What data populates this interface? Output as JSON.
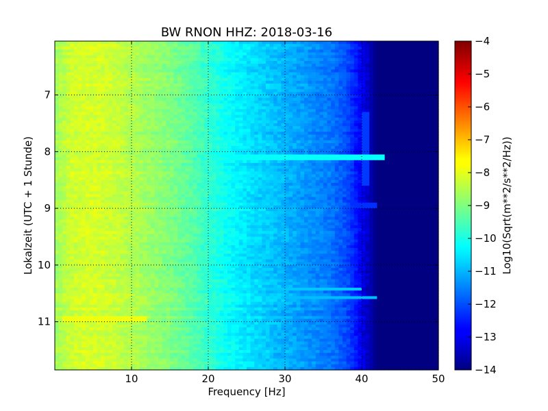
{
  "chart_data": {
    "type": "heatmap",
    "title": "BW RNON HHZ: 2018-03-16",
    "xlabel": "Frequency [Hz]",
    "ylabel": "Lokalzeit (UTC + 1 Stunde)",
    "xlim": [
      0,
      50
    ],
    "ylim": [
      6.05,
      11.85
    ],
    "y_inverted": true,
    "x_ticks": [
      10,
      20,
      30,
      40,
      50
    ],
    "x_tick_labels": [
      "10",
      "20",
      "30",
      "40",
      "50"
    ],
    "y_ticks": [
      7,
      8,
      9,
      10,
      11
    ],
    "y_tick_labels": [
      "7",
      "8",
      "9",
      "10",
      "11"
    ],
    "grid": true,
    "colormap": "jet",
    "colorbar": {
      "label": "Log10(Sqrt(m**2/s**2/Hz))",
      "range": [
        -14,
        -4
      ],
      "ticks": [
        -4,
        -5,
        -6,
        -7,
        -8,
        -9,
        -10,
        -11,
        -12,
        -13,
        -14
      ],
      "tick_labels": [
        "−4",
        "−5",
        "−6",
        "−7",
        "−8",
        "−9",
        "−10",
        "−11",
        "−12",
        "−13",
        "−14"
      ]
    },
    "spectrum_profile": {
      "frequency_hz": [
        0,
        2,
        4,
        6,
        8,
        10,
        12,
        15,
        18,
        20,
        22,
        25,
        28,
        30,
        33,
        36,
        38,
        39,
        40,
        41,
        42,
        45,
        50
      ],
      "log_amplitude": [
        -8.7,
        -8.25,
        -8.15,
        -8.2,
        -8.3,
        -8.5,
        -8.7,
        -9.0,
        -9.4,
        -9.8,
        -10.1,
        -10.5,
        -10.8,
        -11.0,
        -11.3,
        -11.6,
        -12.0,
        -12.4,
        -12.9,
        -13.4,
        -14.0,
        -14.0,
        -14.0
      ]
    },
    "disturbances": [
      {
        "time": 8.1,
        "freq_range": [
          16,
          43
        ],
        "log_amplitude": -10.2
      },
      {
        "time": 10.42,
        "freq_range": [
          24,
          40
        ],
        "log_amplitude": -10.8
      },
      {
        "time": 10.57,
        "freq_range": [
          16,
          42
        ],
        "log_amplitude": -10.9
      },
      {
        "time": 8.95,
        "freq_range": [
          38,
          42
        ],
        "log_amplitude": -12.3
      },
      {
        "time": 10.95,
        "freq_range": [
          1,
          12
        ],
        "log_amplitude": -7.9
      }
    ],
    "spectral_lines": [
      {
        "freq": 40.5,
        "time_range": [
          7.3,
          8.6
        ],
        "log_amplitude": -12.2
      }
    ]
  }
}
